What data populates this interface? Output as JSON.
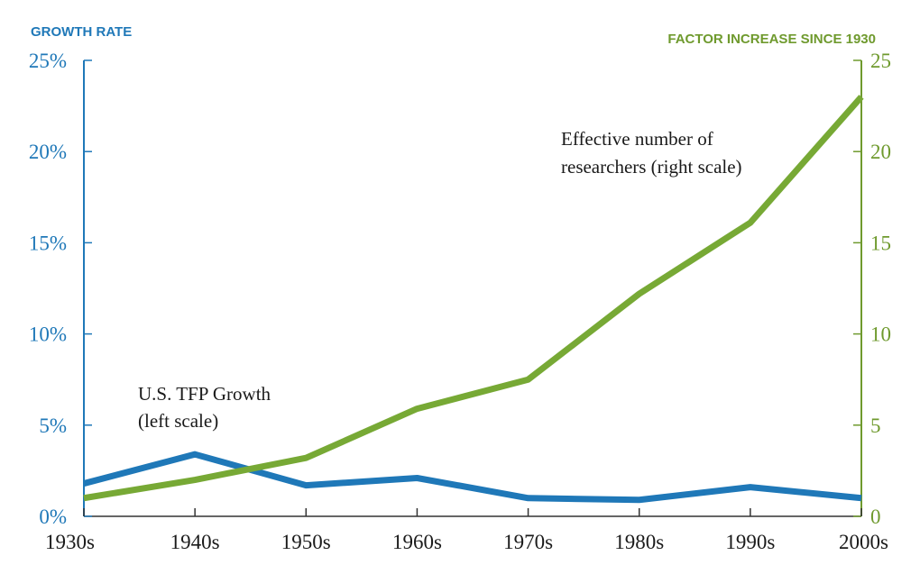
{
  "chart_data": {
    "type": "line",
    "categories": [
      "1930s",
      "1940s",
      "1950s",
      "1960s",
      "1970s",
      "1980s",
      "1990s",
      "2000s"
    ],
    "left_axis": {
      "title": "GROWTH RATE",
      "range": [
        0,
        25
      ],
      "ticks": [
        "0%",
        "5%",
        "10%",
        "15%",
        "20%",
        "25%"
      ],
      "color": "#1f78b8"
    },
    "right_axis": {
      "title": "FACTOR INCREASE SINCE 1930",
      "range": [
        0,
        25
      ],
      "ticks": [
        "0",
        "5",
        "10",
        "15",
        "20",
        "25"
      ],
      "color": "#6f9a2e"
    },
    "series": [
      {
        "axis": "left",
        "color": "#1f78b8",
        "values": [
          1.8,
          3.4,
          1.7,
          2.1,
          1.0,
          0.9,
          1.6,
          1.0
        ],
        "annotation": [
          "U.S. TFP Growth",
          "(left scale)"
        ]
      },
      {
        "axis": "right",
        "color": "#77a935",
        "values": [
          1.0,
          2.0,
          3.2,
          5.9,
          7.5,
          12.2,
          16.1,
          23.0
        ],
        "annotation": [
          "Effective number of",
          "researchers (right scale)"
        ]
      }
    ],
    "grid": false,
    "legend": "none"
  }
}
